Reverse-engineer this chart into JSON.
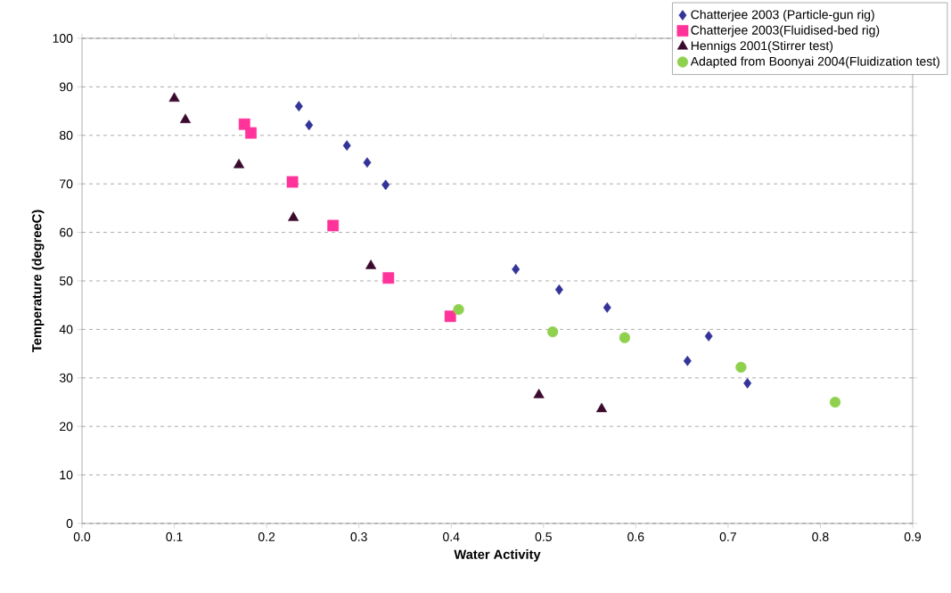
{
  "chart_data": {
    "type": "scatter",
    "xlabel": "Water Activity",
    "ylabel": "Temperature (degreeC)",
    "xlim": [
      0,
      0.9
    ],
    "xticks": [
      {
        "value": 0,
        "label": "0.0"
      },
      0.1,
      0.2,
      0.3,
      0.4,
      0.5,
      0.6,
      0.7,
      0.8,
      0.9
    ],
    "ylim": [
      0,
      100
    ],
    "yticks": [
      0,
      10,
      20,
      30,
      40,
      50,
      60,
      70,
      80,
      90,
      100
    ],
    "grid": "y",
    "legend": "top right",
    "series": [
      {
        "name": "Chatterjee 2003 (Particle-gun rig)",
        "color": "#333399",
        "marker": "diamond",
        "x": [
          0.235,
          0.246,
          0.287,
          0.309,
          0.329,
          0.47,
          0.517,
          0.569,
          0.656,
          0.679,
          0.721
        ],
        "values": [
          86.0,
          82.1,
          77.9,
          74.4,
          69.8,
          52.4,
          48.2,
          44.5,
          33.5,
          38.6,
          28.9
        ]
      },
      {
        "name": "Chatterjee 2003(Fluidised-bed rig)",
        "color": "#ff3399",
        "marker": "square",
        "x": [
          0.176,
          0.183,
          0.228,
          0.272,
          0.332,
          0.399
        ],
        "values": [
          82.3,
          80.5,
          70.4,
          61.4,
          50.6,
          42.7
        ]
      },
      {
        "name": "Hennigs 2001(Stirrer test)",
        "color": "#3a0a2e",
        "marker": "triangle",
        "x": [
          0.1,
          0.112,
          0.17,
          0.229,
          0.313,
          0.495,
          0.563
        ],
        "values": [
          87.6,
          83.2,
          73.9,
          63.0,
          53.1,
          26.5,
          23.6
        ]
      },
      {
        "name": "Adapted from Boonyai 2004(Fluidization test)",
        "color": "#8fd14f",
        "marker": "circle",
        "x": [
          0.408,
          0.51,
          0.588,
          0.714,
          0.816
        ],
        "values": [
          44.1,
          39.5,
          38.3,
          32.2,
          25.0
        ]
      }
    ]
  }
}
